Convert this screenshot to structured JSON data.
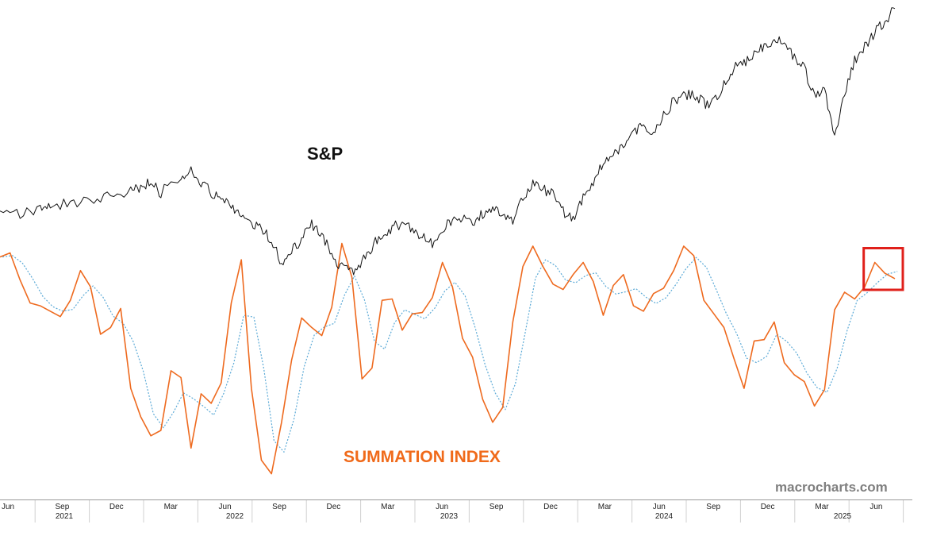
{
  "chart_data": {
    "type": "line",
    "sp_label": "S&P",
    "summation_label": "SUMMATION INDEX",
    "watermark": "macrocharts.com",
    "month_ticks": [
      "Jun",
      "Sep",
      "Dec",
      "Mar",
      "Jun",
      "Sep",
      "Dec",
      "Mar",
      "Jun",
      "Sep",
      "Dec",
      "Mar",
      "Jun",
      "Sep",
      "Dec",
      "Mar",
      "Jun"
    ],
    "year_ticks": [
      "2021",
      "2022",
      "2023",
      "2024",
      "2025"
    ],
    "colors": {
      "sp_line": "#111111",
      "summation_line": "#ee6a1f",
      "summation_signal": "#5aa9d6",
      "highlight_box": "#e0201b",
      "summation_label": "#f06a1a"
    },
    "sp_series": [
      [
        0,
        4200
      ],
      [
        2,
        4230
      ],
      [
        4,
        4270
      ],
      [
        5,
        4300
      ],
      [
        7,
        4350
      ],
      [
        9,
        4370
      ],
      [
        11,
        4440
      ],
      [
        13,
        4480
      ],
      [
        14,
        4520
      ],
      [
        15,
        4560
      ],
      [
        16,
        4460
      ],
      [
        18,
        4640
      ],
      [
        19,
        4700
      ],
      [
        20,
        4580
      ],
      [
        21,
        4450
      ],
      [
        22,
        4380
      ],
      [
        23,
        4340
      ],
      [
        24,
        4190
      ],
      [
        25,
        4150
      ],
      [
        26,
        4050
      ],
      [
        27,
        3950
      ],
      [
        28,
        3700
      ],
      [
        29,
        3820
      ],
      [
        30,
        3960
      ],
      [
        31,
        4120
      ],
      [
        32,
        4000
      ],
      [
        33,
        3800
      ],
      [
        34,
        3640
      ],
      [
        35,
        3600
      ],
      [
        36,
        3720
      ],
      [
        37,
        3880
      ],
      [
        38,
        3990
      ],
      [
        39,
        4080
      ],
      [
        40,
        4130
      ],
      [
        41,
        4040
      ],
      [
        42,
        3980
      ],
      [
        43,
        3920
      ],
      [
        44,
        4080
      ],
      [
        45,
        4160
      ],
      [
        46,
        4200
      ],
      [
        47,
        4120
      ],
      [
        48,
        4230
      ],
      [
        49,
        4300
      ],
      [
        50,
        4180
      ],
      [
        51,
        4140
      ],
      [
        52,
        4410
      ],
      [
        53,
        4570
      ],
      [
        54,
        4500
      ],
      [
        55,
        4440
      ],
      [
        56,
        4260
      ],
      [
        57,
        4180
      ],
      [
        58,
        4400
      ],
      [
        59,
        4570
      ],
      [
        60,
        4770
      ],
      [
        61,
        4850
      ],
      [
        62,
        4990
      ],
      [
        63,
        5130
      ],
      [
        64,
        5160
      ],
      [
        65,
        5090
      ],
      [
        66,
        5300
      ],
      [
        67,
        5450
      ],
      [
        68,
        5500
      ],
      [
        69,
        5530
      ],
      [
        70,
        5420
      ],
      [
        71,
        5440
      ],
      [
        72,
        5620
      ],
      [
        73,
        5810
      ],
      [
        74,
        5870
      ],
      [
        75,
        5980
      ],
      [
        76,
        6050
      ],
      [
        77,
        6100
      ],
      [
        78,
        6080
      ],
      [
        79,
        5920
      ],
      [
        80,
        5790
      ],
      [
        81,
        5500
      ],
      [
        82,
        5600
      ],
      [
        83,
        5040
      ],
      [
        84,
        5530
      ],
      [
        85,
        5900
      ],
      [
        86,
        6030
      ],
      [
        87,
        6200
      ],
      [
        88,
        6300
      ],
      [
        89,
        6450
      ]
    ],
    "summation_series": [
      [
        0,
        620
      ],
      [
        1,
        650
      ],
      [
        2,
        450
      ],
      [
        3,
        280
      ],
      [
        4,
        260
      ],
      [
        5,
        220
      ],
      [
        6,
        180
      ],
      [
        7,
        300
      ],
      [
        8,
        520
      ],
      [
        9,
        400
      ],
      [
        10,
        50
      ],
      [
        11,
        100
      ],
      [
        12,
        240
      ],
      [
        13,
        -350
      ],
      [
        14,
        -560
      ],
      [
        15,
        -700
      ],
      [
        16,
        -660
      ],
      [
        17,
        -220
      ],
      [
        18,
        -270
      ],
      [
        19,
        -790
      ],
      [
        20,
        -390
      ],
      [
        21,
        -460
      ],
      [
        22,
        -310
      ],
      [
        23,
        280
      ],
      [
        24,
        600
      ],
      [
        25,
        -350
      ],
      [
        26,
        -880
      ],
      [
        27,
        -980
      ],
      [
        28,
        -600
      ],
      [
        29,
        -140
      ],
      [
        30,
        170
      ],
      [
        31,
        100
      ],
      [
        32,
        40
      ],
      [
        33,
        250
      ],
      [
        34,
        720
      ],
      [
        35,
        470
      ],
      [
        36,
        -280
      ],
      [
        37,
        -200
      ],
      [
        38,
        300
      ],
      [
        39,
        310
      ],
      [
        40,
        80
      ],
      [
        41,
        200
      ],
      [
        42,
        210
      ],
      [
        43,
        320
      ],
      [
        44,
        580
      ],
      [
        45,
        400
      ],
      [
        46,
        20
      ],
      [
        47,
        -120
      ],
      [
        48,
        -430
      ],
      [
        49,
        -600
      ],
      [
        50,
        -490
      ],
      [
        51,
        140
      ],
      [
        52,
        550
      ],
      [
        53,
        700
      ],
      [
        54,
        550
      ],
      [
        55,
        420
      ],
      [
        56,
        380
      ],
      [
        57,
        490
      ],
      [
        58,
        580
      ],
      [
        59,
        440
      ],
      [
        60,
        190
      ],
      [
        61,
        410
      ],
      [
        62,
        490
      ],
      [
        63,
        260
      ],
      [
        64,
        220
      ],
      [
        65,
        350
      ],
      [
        66,
        390
      ],
      [
        67,
        520
      ],
      [
        68,
        700
      ],
      [
        69,
        630
      ],
      [
        70,
        300
      ],
      [
        71,
        200
      ],
      [
        72,
        100
      ],
      [
        73,
        -130
      ],
      [
        74,
        -350
      ],
      [
        75,
        0
      ],
      [
        76,
        10
      ],
      [
        77,
        140
      ],
      [
        78,
        -160
      ],
      [
        79,
        -250
      ],
      [
        80,
        -300
      ],
      [
        81,
        -480
      ],
      [
        82,
        -360
      ],
      [
        83,
        230
      ],
      [
        84,
        360
      ],
      [
        85,
        310
      ],
      [
        86,
        400
      ],
      [
        87,
        580
      ],
      [
        88,
        500
      ],
      [
        89,
        460
      ]
    ],
    "highlight": {
      "x_from": 87,
      "x_to": 89
    }
  }
}
